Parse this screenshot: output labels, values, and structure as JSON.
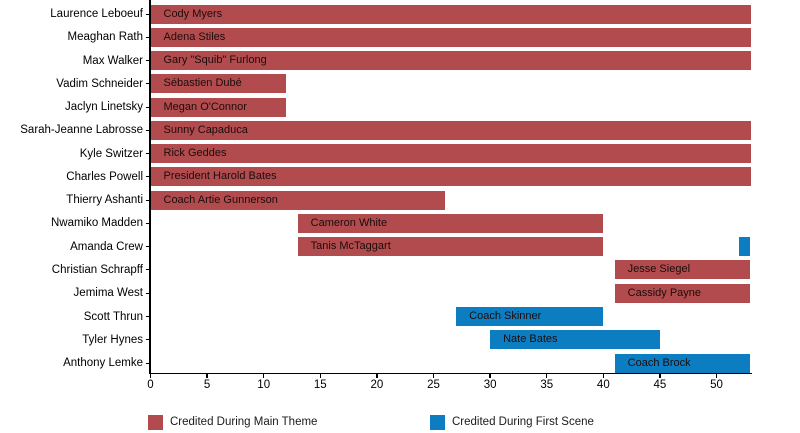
{
  "figure": {
    "background": "#ffffff"
  },
  "chart_data": {
    "type": "bar",
    "subtype": "horizontal-gantt-cast-timeline",
    "title": "",
    "xlabel": "",
    "ylabel": "",
    "xlim": [
      0,
      53
    ],
    "xticks": [
      0,
      5,
      10,
      15,
      20,
      25,
      30,
      35,
      40,
      45,
      50
    ],
    "grid": false,
    "legend_position": "bottom",
    "series_colors": {
      "main_theme": "#b24b4d",
      "first_scene": "#0d7dc2"
    },
    "legend": [
      {
        "series": "main_theme",
        "label": "Credited During Main Theme",
        "color": "#b24b4d"
      },
      {
        "series": "first_scene",
        "label": "Credited During First Scene",
        "color": "#0d7dc2"
      }
    ],
    "rows": [
      {
        "actor": "Laurence Leboeuf",
        "bars": [
          {
            "label": "Cody Myers",
            "start": 0,
            "end": 53,
            "series": "main_theme"
          }
        ]
      },
      {
        "actor": "Meaghan Rath",
        "bars": [
          {
            "label": "Adena Stiles",
            "start": 0,
            "end": 53,
            "series": "main_theme"
          }
        ]
      },
      {
        "actor": "Max Walker",
        "bars": [
          {
            "label": "Gary \"Squib\" Furlong",
            "start": 0,
            "end": 53,
            "series": "main_theme"
          }
        ]
      },
      {
        "actor": "Vadim Schneider",
        "bars": [
          {
            "label": "Sébastien Dubé",
            "start": 0,
            "end": 12,
            "series": "main_theme"
          }
        ]
      },
      {
        "actor": "Jaclyn Linetsky",
        "bars": [
          {
            "label": "Megan O'Connor",
            "start": 0,
            "end": 12,
            "series": "main_theme"
          }
        ]
      },
      {
        "actor": "Sarah-Jeanne Labrosse",
        "bars": [
          {
            "label": "Sunny Capaduca",
            "start": 0,
            "end": 53,
            "series": "main_theme"
          }
        ]
      },
      {
        "actor": "Kyle Switzer",
        "bars": [
          {
            "label": "Rick Geddes",
            "start": 0,
            "end": 53,
            "series": "main_theme"
          }
        ]
      },
      {
        "actor": "Charles Powell",
        "bars": [
          {
            "label": "President Harold Bates",
            "start": 0,
            "end": 53,
            "series": "main_theme"
          }
        ]
      },
      {
        "actor": "Thierry Ashanti",
        "bars": [
          {
            "label": "Coach Artie Gunnerson",
            "start": 0,
            "end": 26,
            "series": "main_theme"
          }
        ]
      },
      {
        "actor": "Nwamiko Madden",
        "bars": [
          {
            "label": "Cameron White",
            "start": 13,
            "end": 40,
            "series": "main_theme"
          }
        ]
      },
      {
        "actor": "Amanda Crew",
        "bars": [
          {
            "label": "Tanis McTaggart",
            "start": 13,
            "end": 40,
            "series": "main_theme"
          },
          {
            "label": "",
            "start": 52,
            "end": 53,
            "series": "first_scene"
          }
        ]
      },
      {
        "actor": "Christian Schrapff",
        "bars": [
          {
            "label": "Jesse Siegel",
            "start": 41,
            "end": 53,
            "series": "main_theme"
          }
        ]
      },
      {
        "actor": "Jemima West",
        "bars": [
          {
            "label": "Cassidy Payne",
            "start": 41,
            "end": 53,
            "series": "main_theme"
          }
        ]
      },
      {
        "actor": "Scott Thrun",
        "bars": [
          {
            "label": "Coach Skinner",
            "start": 27,
            "end": 40,
            "series": "first_scene"
          }
        ]
      },
      {
        "actor": "Tyler Hynes",
        "bars": [
          {
            "label": "Nate Bates",
            "start": 30,
            "end": 45,
            "series": "first_scene"
          }
        ]
      },
      {
        "actor": "Anthony Lemke",
        "bars": [
          {
            "label": "Coach Brock",
            "start": 41,
            "end": 53,
            "series": "first_scene"
          }
        ]
      }
    ]
  }
}
